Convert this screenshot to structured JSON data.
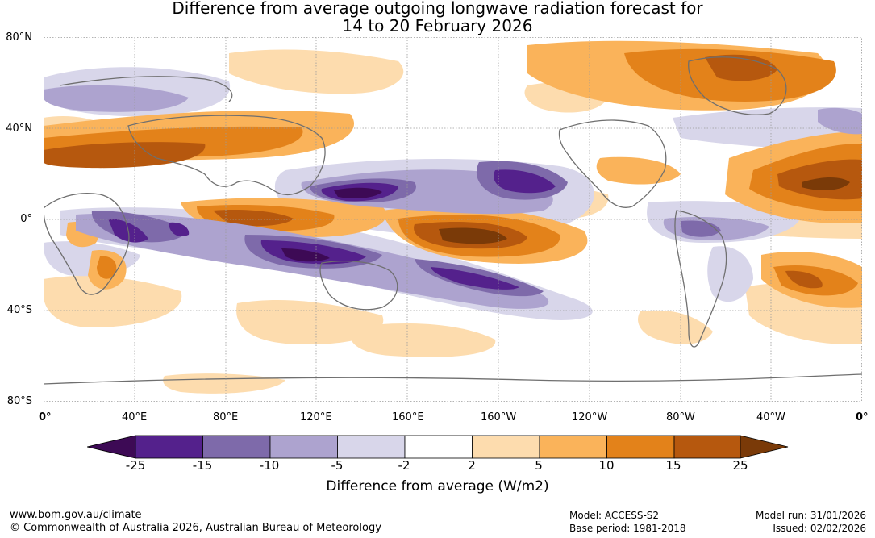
{
  "title_line1": "Difference from average outgoing longwave radiation forecast for",
  "title_line2": "14 to 20 February 2026",
  "latitude_labels": [
    "80°N",
    "40°N",
    "0°",
    "40°S",
    "80°S"
  ],
  "longitude_labels": [
    "0°",
    "40°E",
    "80°E",
    "120°E",
    "160°E",
    "160°W",
    "120°W",
    "80°W",
    "40°W",
    "0°"
  ],
  "colorbar": {
    "ticks": [
      "-25",
      "-15",
      "-10",
      "-5",
      "-2",
      "2",
      "5",
      "10",
      "15",
      "25"
    ],
    "colors": [
      "#3d0a55",
      "#54218c",
      "#7e6aaa",
      "#ada3cf",
      "#d8d6ea",
      "#ffffff",
      "#fddcae",
      "#fab35a",
      "#e3821a",
      "#b6580e",
      "#7a3a08"
    ],
    "label": "Difference from average (W/m2)"
  },
  "footer": {
    "website": "www.bom.gov.au/climate",
    "copyright": "© Commonwealth of Australia 2026, Australian Bureau of Meteorology",
    "model": "Model: ACCESS-S2",
    "base_period": "Base period: 1981-2018",
    "model_run": "Model run: 31/01/2026",
    "issued": "Issued: 02/02/2026"
  }
}
